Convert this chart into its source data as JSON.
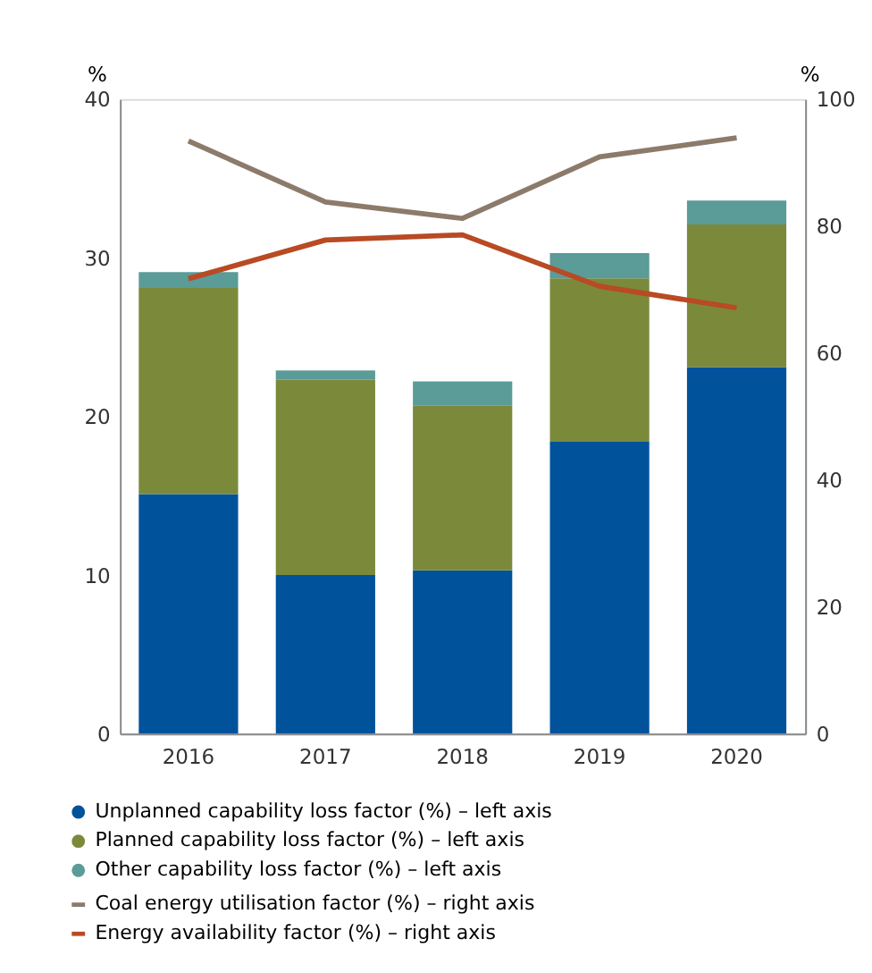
{
  "chart_data": {
    "type": "bar",
    "stacked": true,
    "categories": [
      "2016",
      "2017",
      "2018",
      "2019",
      "2020"
    ],
    "ylabel": "%",
    "y2label": "%",
    "ylim": [
      0,
      40
    ],
    "yticks": [
      0,
      10,
      20,
      30,
      40
    ],
    "y2lim": [
      0,
      100
    ],
    "y2ticks": [
      0,
      20,
      40,
      60,
      80,
      100
    ],
    "grid": false,
    "legend": "bottom",
    "series": [
      {
        "name": "Unplanned capability loss factor (%) – left axis",
        "color": "#00529b",
        "values": [
          15.1,
          10.0,
          10.3,
          18.4,
          23.1
        ]
      },
      {
        "name": "Planned capability loss factor (%) – left axis",
        "color": "#7a8a3a",
        "values": [
          13.0,
          12.3,
          10.4,
          10.3,
          9.0
        ]
      },
      {
        "name": "Other capability loss factor (%) – left axis",
        "color": "#5b9b98",
        "values": [
          1.0,
          0.6,
          1.5,
          1.6,
          1.5
        ]
      },
      {
        "name": "Coal energy utilisation factor (%) – right axis",
        "type": "line",
        "axis": "y2",
        "color": "#8c7b6b",
        "values": [
          93.4,
          83.8,
          81.2,
          90.9,
          93.9
        ]
      },
      {
        "name": "Energy availability factor (%) – right axis",
        "type": "line",
        "axis": "y2",
        "color": "#b84a24",
        "values": [
          71.7,
          77.8,
          78.6,
          70.5,
          67.1
        ]
      }
    ]
  }
}
